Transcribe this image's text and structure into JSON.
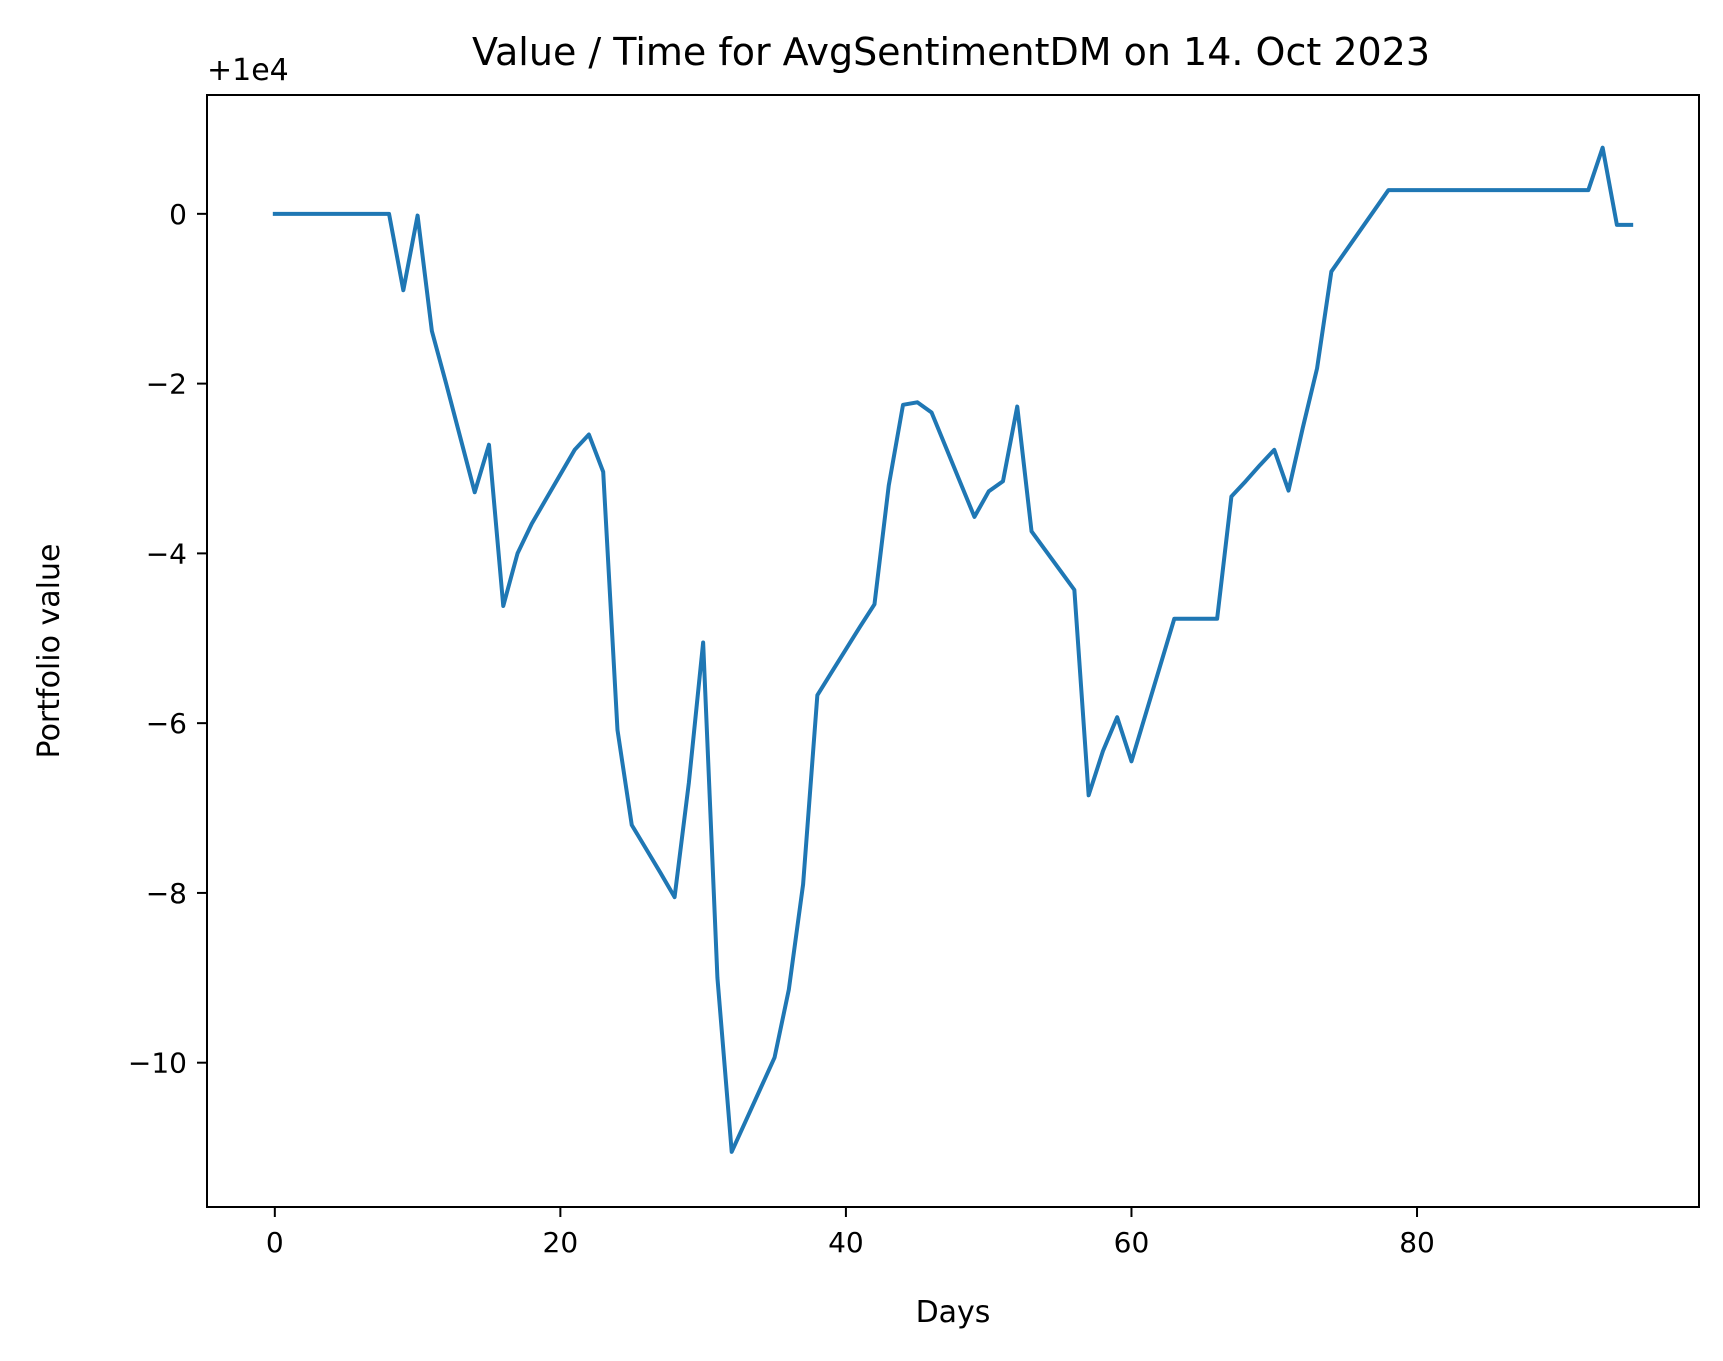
{
  "chart_data": {
    "type": "line",
    "title": "Value / Time for AvgSentimentDM on 14. Oct 2023",
    "xlabel": "Days",
    "ylabel": "Portfolio value",
    "y_offset_label": "+1e4",
    "xlim": [
      -4.75,
      99.75
    ],
    "ylim": [
      -11.7,
      1.4
    ],
    "x_ticks": [
      0,
      20,
      40,
      60,
      80
    ],
    "x_tick_labels": [
      "0",
      "20",
      "40",
      "60",
      "80"
    ],
    "y_ticks": [
      0,
      -2,
      -4,
      -6,
      -8,
      -10
    ],
    "y_tick_labels": [
      "0",
      "−2",
      "−4",
      "−6",
      "−8",
      "−10"
    ],
    "grid": false,
    "legend": "none",
    "series": [
      {
        "color": "#1f77b4",
        "x": [
          0,
          1,
          2,
          3,
          4,
          5,
          6,
          7,
          8,
          9,
          10,
          11,
          12,
          13,
          14,
          15,
          16,
          17,
          18,
          19,
          20,
          21,
          22,
          23,
          24,
          25,
          26,
          27,
          28,
          29,
          30,
          31,
          32,
          33,
          34,
          35,
          36,
          37,
          38,
          39,
          40,
          41,
          42,
          43,
          44,
          45,
          46,
          47,
          48,
          49,
          50,
          51,
          52,
          53,
          54,
          55,
          56,
          57,
          58,
          59,
          60,
          61,
          62,
          63,
          64,
          65,
          66,
          67,
          68,
          69,
          70,
          71,
          72,
          73,
          74,
          75,
          76,
          77,
          78,
          79,
          80,
          81,
          82,
          83,
          84,
          85,
          86,
          87,
          88,
          89,
          90,
          91,
          92,
          93,
          94,
          95
        ],
        "y": [
          0,
          0,
          0,
          0,
          0,
          0,
          0,
          0,
          0,
          -0.9,
          -0.02,
          -1.38,
          -2.0,
          -2.64,
          -3.28,
          -2.72,
          -4.62,
          -4.0,
          -3.65,
          -3.36,
          -3.07,
          -2.78,
          -2.6,
          -3.04,
          -6.08,
          -7.2,
          -7.48,
          -7.76,
          -8.05,
          -6.7,
          -5.05,
          -9.0,
          -11.05,
          -10.68,
          -10.31,
          -9.94,
          -9.14,
          -7.9,
          -5.67,
          -5.4,
          -5.13,
          -4.86,
          -4.6,
          -3.2,
          -2.25,
          -2.22,
          -2.34,
          -2.75,
          -3.16,
          -3.57,
          -3.27,
          -3.15,
          -2.27,
          -3.74,
          -3.97,
          -4.2,
          -4.43,
          -6.85,
          -6.33,
          -5.93,
          -6.45,
          -5.89,
          -5.33,
          -4.77,
          -4.77,
          -4.77,
          -4.77,
          -3.33,
          -3.15,
          -2.96,
          -2.78,
          -3.26,
          -2.52,
          -1.82,
          -0.68,
          -0.44,
          -0.2,
          0.04,
          0.28,
          0.28,
          0.28,
          0.28,
          0.28,
          0.28,
          0.28,
          0.28,
          0.28,
          0.28,
          0.28,
          0.28,
          0.28,
          0.28,
          0.28,
          0.78,
          -0.13,
          -0.13
        ]
      }
    ]
  }
}
